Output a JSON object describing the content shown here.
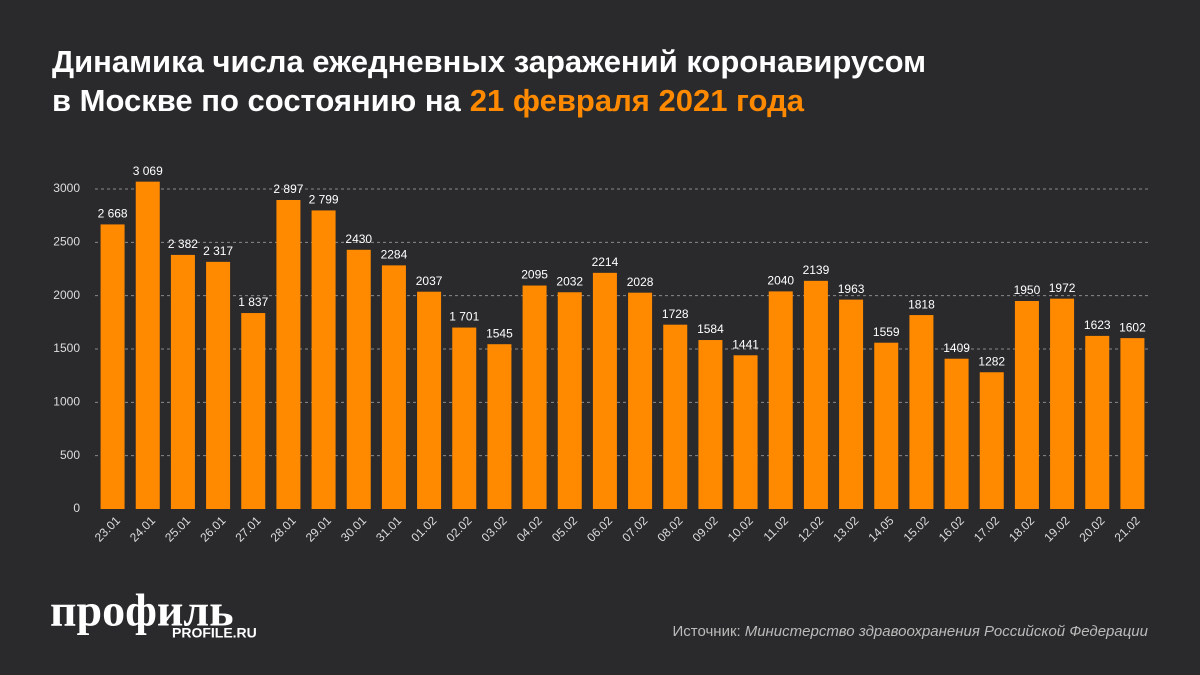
{
  "chart_data": {
    "type": "bar",
    "title_lines": [
      "Динамика числа ежедневных заражений коронавирусом",
      "в Москве по состоянию на"
    ],
    "title_highlight": "21 февраля 2021 года",
    "categories": [
      "23.01",
      "24.01",
      "25.01",
      "26.01",
      "27.01",
      "28.01",
      "29.01",
      "30.01",
      "31.01",
      "01.02",
      "02.02",
      "03.02",
      "04.02",
      "05.02",
      "06.02",
      "07.02",
      "08.02",
      "09.02",
      "10.02",
      "11.02",
      "12.02",
      "13.02",
      "14.05",
      "15.02",
      "16.02",
      "17.02",
      "18.02",
      "19.02",
      "20.02",
      "21.02"
    ],
    "values": [
      2668,
      3069,
      2382,
      2317,
      1837,
      2897,
      2799,
      2430,
      2284,
      2037,
      1701,
      1545,
      2095,
      2032,
      2214,
      2028,
      1728,
      1584,
      1441,
      2040,
      2139,
      1963,
      1559,
      1818,
      1409,
      1282,
      1950,
      1972,
      1623,
      1602
    ],
    "value_labels": [
      "2 668",
      "3 069",
      "2 382",
      "2 317",
      "1 837",
      "2 897",
      "2 799",
      "2430",
      "2284",
      "2037",
      "1 701",
      "1545",
      "2095",
      "2032",
      "2214",
      "2028",
      "1728",
      "1584",
      "1441",
      "2040",
      "2139",
      "1963",
      "1559",
      "1818",
      "1409",
      "1282",
      "1950",
      "1972",
      "1623",
      "1602"
    ],
    "color": "#ff8a00",
    "ylim": [
      0,
      3000
    ],
    "yticks": [
      0,
      500,
      1000,
      1500,
      2000,
      2500,
      3000
    ],
    "grid": true,
    "logo": "профиль",
    "logo_site": "PROFILE.RU",
    "source_label": "Источник:",
    "source": "Министерство здравоохранения Российской Федерации"
  }
}
